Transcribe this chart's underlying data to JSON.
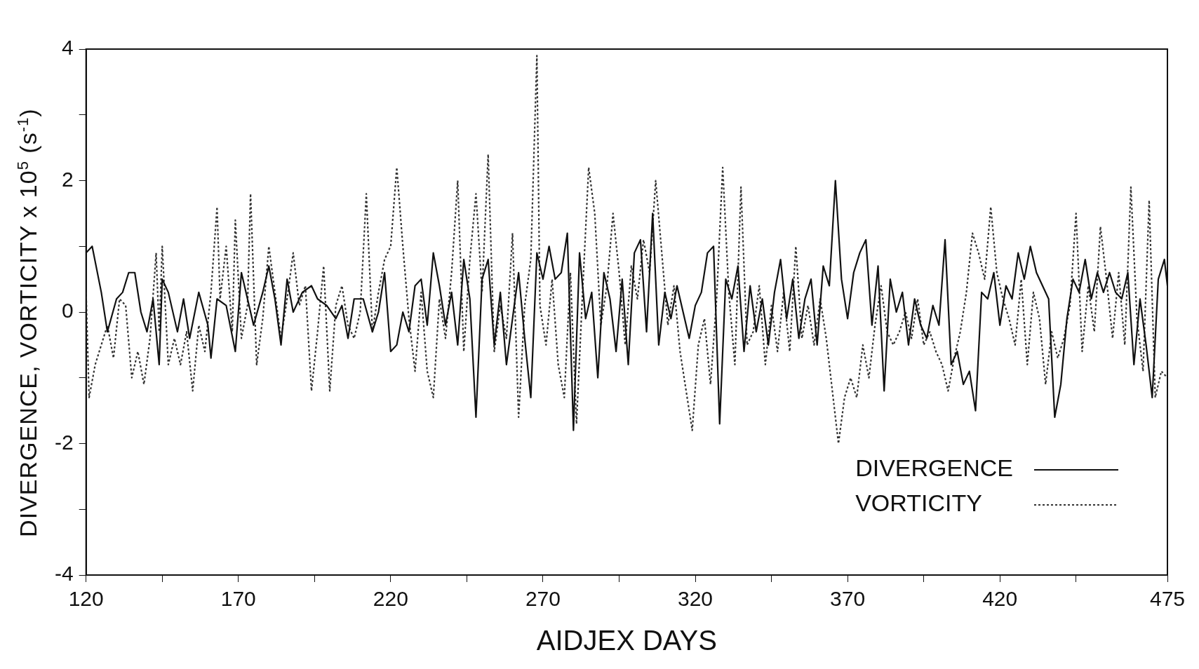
{
  "chart_data": {
    "type": "line",
    "xlabel": "AIDJEX DAYS",
    "ylabel": "DIVERGENCE, VORTICITY x 10$^{5}$ (s$^{-1}$)",
    "xlim": [
      120,
      475
    ],
    "ylim": [
      -4,
      4
    ],
    "xticks": [
      120,
      {
        "value": 145,
        "label": null
      },
      170,
      {
        "value": 195,
        "label": null
      },
      220,
      {
        "value": 245,
        "label": null
      },
      270,
      {
        "value": 295,
        "label": null
      },
      320,
      {
        "value": 345,
        "label": null
      },
      370,
      {
        "value": 395,
        "label": null
      },
      420,
      {
        "value": 445,
        "label": null
      },
      475
    ],
    "yticks": [
      -4,
      {
        "value": -3,
        "label": null
      },
      -2,
      {
        "value": -1,
        "label": null
      },
      0,
      {
        "value": 1,
        "label": null
      },
      2,
      {
        "value": 3,
        "label": null
      },
      4
    ],
    "grid": false,
    "legend": "bottom right",
    "marker": "none",
    "series": [
      {
        "name": "DIVERGENCE",
        "color": "#111111",
        "line_style": "solid",
        "x": [
          120,
          122,
          125,
          127,
          130,
          132,
          134,
          136,
          138,
          140,
          142,
          144,
          145,
          147,
          150,
          152,
          154,
          157,
          160,
          161,
          163,
          166,
          169,
          171,
          173,
          175,
          178,
          180,
          182,
          184,
          186,
          188,
          191,
          194,
          196,
          199,
          202,
          204,
          206,
          208,
          211,
          214,
          216,
          218,
          220,
          222,
          224,
          226,
          228,
          230,
          232,
          234,
          236,
          238,
          240,
          242,
          244,
          246,
          248,
          250,
          252,
          254,
          256,
          258,
          260,
          262,
          264,
          266,
          268,
          270,
          272,
          274,
          276,
          278,
          280,
          282,
          284,
          286,
          288,
          290,
          292,
          294,
          296,
          298,
          300,
          302,
          304,
          306,
          308,
          310,
          312,
          314,
          316,
          318,
          320,
          322,
          324,
          326,
          328,
          330,
          332,
          334,
          336,
          338,
          340,
          342,
          344,
          346,
          348,
          350,
          352,
          354,
          356,
          358,
          360,
          362,
          364,
          366,
          368,
          370,
          372,
          374,
          376,
          378,
          380,
          382,
          384,
          386,
          388,
          390,
          392,
          394,
          396,
          398,
          400,
          402,
          404,
          406,
          408,
          410,
          412,
          414,
          416,
          418,
          420,
          422,
          424,
          426,
          428,
          430,
          432,
          434,
          436,
          438,
          440,
          442,
          444,
          446,
          448,
          450,
          452,
          454,
          456,
          458,
          460,
          462,
          464,
          466,
          468,
          470,
          472,
          474,
          475
        ],
        "values": [
          0.9,
          1.0,
          0.3,
          -0.3,
          0.2,
          0.3,
          0.6,
          0.6,
          0,
          -0.3,
          0.2,
          -0.8,
          0.5,
          0.3,
          -0.3,
          0.2,
          -0.4,
          0.3,
          -0.2,
          -0.7,
          0.2,
          0.1,
          -0.6,
          0.6,
          0.2,
          -0.2,
          0.3,
          0.7,
          0.2,
          -0.5,
          0.5,
          0,
          0.3,
          0.4,
          0.2,
          0.1,
          -0.1,
          0.1,
          -0.4,
          0.2,
          0.2,
          -0.3,
          0,
          0.6,
          -0.6,
          -0.5,
          0,
          -0.3,
          0.4,
          0.5,
          -0.2,
          0.9,
          0.4,
          -0.2,
          0.3,
          -0.5,
          0.8,
          0.2,
          -1.6,
          0.5,
          0.8,
          -0.5,
          0.3,
          -0.8,
          -0.1,
          0.6,
          -0.4,
          -1.3,
          0.9,
          0.5,
          1.0,
          0.5,
          0.6,
          1.2,
          -1.8,
          0.9,
          -0.1,
          0.3,
          -1.0,
          0.6,
          0.2,
          -0.6,
          0.5,
          -0.8,
          0.9,
          1.1,
          -0.3,
          1.5,
          -0.5,
          0.3,
          -0.1,
          0.4,
          0,
          -0.4,
          0.1,
          0.3,
          0.9,
          1.0,
          -1.7,
          0.5,
          0.2,
          0.7,
          -0.6,
          0.4,
          -0.3,
          0.2,
          -0.5,
          0.3,
          0.8,
          -0.1,
          0.5,
          -0.4,
          0.2,
          0.5,
          -0.5,
          0.7,
          0.4,
          2.0,
          0.5,
          -0.1,
          0.6,
          0.9,
          1.1,
          -0.2,
          0.7,
          -1.2,
          0.5,
          0,
          0.3,
          -0.5,
          0.2,
          -0.2,
          -0.4,
          0.1,
          -0.2,
          1.1,
          -0.8,
          -0.6,
          -1.1,
          -0.9,
          -1.5,
          0.3,
          0.2,
          0.6,
          -0.2,
          0.4,
          0.2,
          0.9,
          0.5,
          1.0,
          0.6,
          0.4,
          0.2,
          -1.6,
          -1.1,
          -0.1,
          0.5,
          0.3,
          0.8,
          0.2,
          0.6,
          0.3,
          0.6,
          0.3,
          0.2,
          0.6,
          -0.8,
          0.2,
          -0.5,
          -1.3,
          0.5,
          0.8,
          0.4
        ]
      },
      {
        "name": "VORTICITY",
        "color": "#333333",
        "line_style": "dotted",
        "x": [
          120,
          121,
          123,
          125,
          127,
          129,
          131,
          133,
          135,
          137,
          139,
          141,
          143,
          144,
          145,
          147,
          149,
          151,
          153,
          155,
          157,
          159,
          161,
          163,
          164,
          166,
          168,
          169,
          171,
          173,
          174,
          176,
          178,
          180,
          182,
          184,
          186,
          188,
          190,
          192,
          194,
          196,
          198,
          200,
          202,
          204,
          206,
          208,
          210,
          212,
          214,
          216,
          218,
          220,
          222,
          224,
          226,
          228,
          230,
          232,
          234,
          236,
          238,
          240,
          242,
          244,
          246,
          248,
          250,
          252,
          254,
          256,
          258,
          260,
          262,
          264,
          266,
          268,
          269,
          271,
          273,
          275,
          277,
          279,
          281,
          283,
          285,
          287,
          289,
          291,
          293,
          295,
          297,
          299,
          301,
          303,
          305,
          307,
          309,
          311,
          313,
          315,
          317,
          319,
          321,
          323,
          325,
          327,
          329,
          331,
          333,
          335,
          337,
          339,
          341,
          343,
          345,
          347,
          349,
          351,
          353,
          355,
          357,
          359,
          361,
          363,
          365,
          367,
          369,
          371,
          373,
          375,
          377,
          379,
          381,
          383,
          385,
          387,
          389,
          391,
          393,
          395,
          397,
          399,
          401,
          403,
          405,
          407,
          409,
          411,
          413,
          415,
          417,
          419,
          421,
          423,
          425,
          427,
          429,
          431,
          433,
          435,
          437,
          439,
          441,
          443,
          445,
          447,
          449,
          451,
          453,
          455,
          457,
          459,
          461,
          463,
          465,
          467,
          469,
          471,
          473,
          475
        ],
        "values": [
          0.3,
          -1.3,
          -0.8,
          -0.5,
          -0.2,
          -0.7,
          0.2,
          0.1,
          -1.0,
          -0.6,
          -1.1,
          -0.4,
          0.9,
          -0.3,
          1.0,
          -0.8,
          -0.4,
          -0.8,
          -0.3,
          -1.2,
          -0.2,
          -0.6,
          0.3,
          1.6,
          0.2,
          1.0,
          -0.3,
          1.4,
          -0.4,
          0.1,
          1.8,
          -0.8,
          -0.1,
          1.0,
          0.3,
          -0.4,
          0.2,
          0.9,
          0.1,
          0.4,
          -1.2,
          -0.3,
          0.7,
          -1.2,
          0.1,
          0.4,
          -0.2,
          -0.4,
          0,
          1.8,
          -0.3,
          0.3,
          0.8,
          1.0,
          2.2,
          1.0,
          -0.1,
          -0.9,
          0.3,
          -0.9,
          -1.3,
          0.2,
          -0.4,
          0.6,
          2.0,
          -0.6,
          0.8,
          1.8,
          0.3,
          2.4,
          -0.6,
          0.1,
          -0.4,
          1.2,
          -1.6,
          0.1,
          0.8,
          3.9,
          0.1,
          -0.5,
          0.5,
          -0.8,
          -1.3,
          0.6,
          -1.7,
          0.3,
          2.2,
          1.5,
          -0.2,
          0.4,
          1.5,
          0.6,
          -0.5,
          0.7,
          0.2,
          1.1,
          0.6,
          2.0,
          0.9,
          -0.2,
          0.4,
          -0.6,
          -1.2,
          -1.8,
          -0.5,
          -0.1,
          -1.1,
          0.2,
          2.2,
          0.3,
          -0.8,
          1.9,
          -0.5,
          -0.3,
          0.4,
          -0.8,
          0.1,
          -0.6,
          0.3,
          -0.6,
          1.0,
          -0.4,
          0.1,
          -0.5,
          0.2,
          -0.4,
          -1.2,
          -2.0,
          -1.3,
          -1.0,
          -1.3,
          -0.5,
          -1.0,
          -0.2,
          0.4,
          -0.3,
          -0.5,
          -0.3,
          0,
          -0.4,
          0.2,
          -0.5,
          -0.3,
          -0.6,
          -0.8,
          -1.2,
          -0.7,
          -0.3,
          0.3,
          1.2,
          0.9,
          0.5,
          1.6,
          0.6,
          0.2,
          -0.1,
          -0.5,
          0.5,
          -0.8,
          0.3,
          -0.1,
          -1.1,
          -0.3,
          -0.7,
          -0.4,
          0.1,
          1.5,
          -0.6,
          0.4,
          -0.3,
          1.3,
          0.5,
          -0.4,
          0.6,
          -0.5,
          1.9,
          -0.1,
          -0.9,
          1.7,
          -1.3,
          -0.9,
          -1.0
        ]
      }
    ]
  }
}
